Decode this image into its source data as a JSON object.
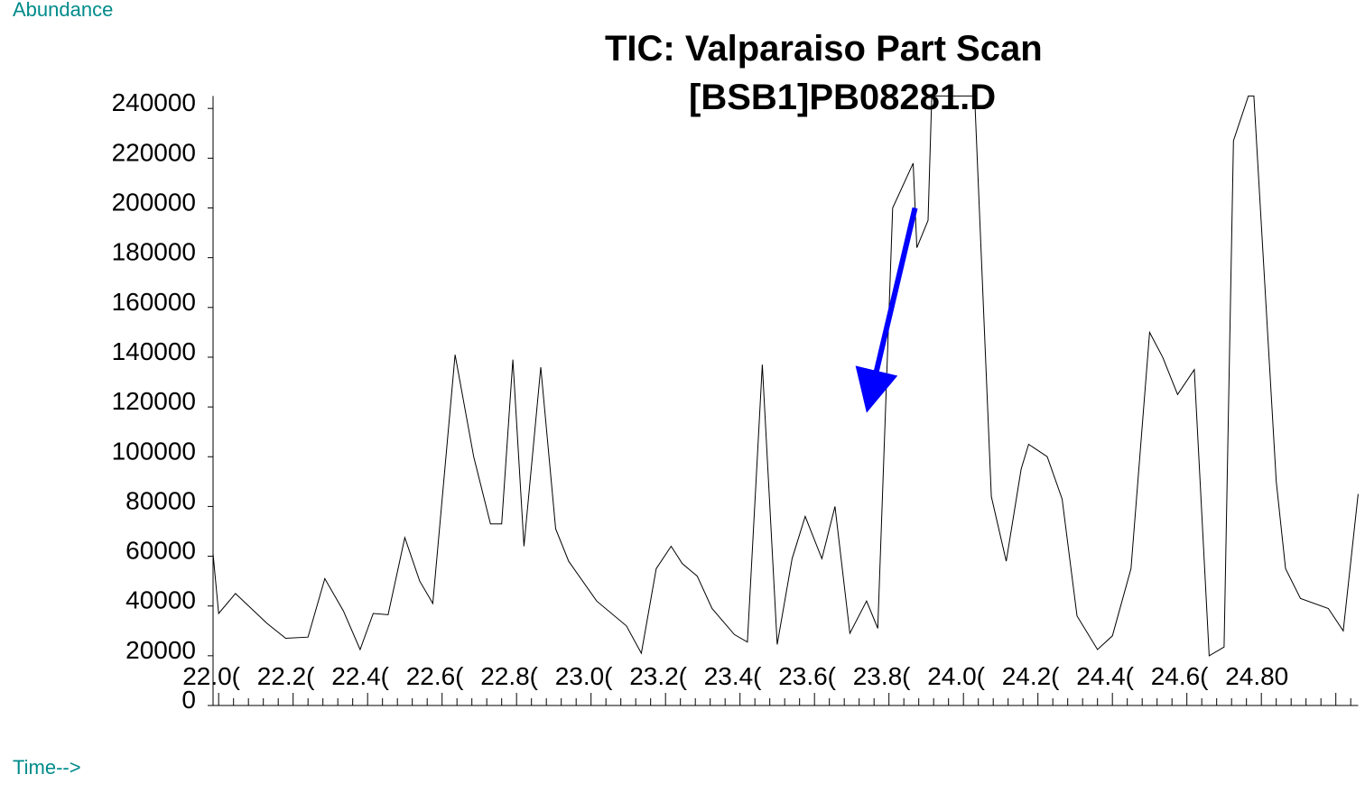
{
  "chart_data": {
    "type": "line",
    "orientation": "flipped-vertically",
    "title": "TIC: Valparaiso Part Scan",
    "subtitle": "[BSB1]PB08281.D",
    "xlabel": "Time-->",
    "ylabel": "Abundance",
    "x_tick_labels": [
      "22.0(",
      "22.2(",
      "22.4(",
      "22.6(",
      "22.8(",
      "23.0(",
      "23.2(",
      "23.4(",
      "23.6(",
      "23.8(",
      "24.0(",
      "24.2(",
      "24.4(",
      "24.6(",
      "24.80"
    ],
    "x_ticks": [
      22.0,
      22.2,
      22.4,
      22.6,
      22.8,
      23.0,
      23.2,
      23.4,
      23.6,
      23.8,
      24.0,
      24.2,
      24.4,
      24.6,
      24.8
    ],
    "y_tick_labels": [
      "0",
      "20000",
      "40000",
      "60000",
      "80000",
      "100000",
      "120000",
      "140000",
      "160000",
      "180000",
      "200000",
      "220000",
      "240000"
    ],
    "y_ticks": [
      0,
      20000,
      40000,
      60000,
      80000,
      100000,
      120000,
      140000,
      160000,
      180000,
      200000,
      220000,
      240000
    ],
    "xlim": [
      21.985,
      25.06
    ],
    "ylim": [
      0,
      245000
    ],
    "series": [
      {
        "color": "#000000",
        "x": [
          21.985,
          22.0,
          22.045,
          22.13,
          22.18,
          22.24,
          22.285,
          22.335,
          22.38,
          22.415,
          22.455,
          22.5,
          22.54,
          22.575,
          22.635,
          22.685,
          22.73,
          22.76,
          22.79,
          22.82,
          22.865,
          22.905,
          22.94,
          23.015,
          23.095,
          23.135,
          23.175,
          23.215,
          23.245,
          23.285,
          23.325,
          23.385,
          23.42,
          23.46,
          23.5,
          23.54,
          23.575,
          23.62,
          23.655,
          23.695,
          23.74,
          23.77,
          23.81,
          23.865,
          23.875,
          23.905,
          23.915,
          23.955,
          23.99,
          24.03,
          24.075,
          24.115,
          24.155,
          24.175,
          24.225,
          24.265,
          24.305,
          24.36,
          24.4,
          24.45,
          24.5,
          24.535,
          24.575,
          24.62,
          24.66,
          24.7,
          24.725,
          24.765,
          24.78,
          24.84,
          24.865,
          24.905,
          24.98,
          25.02,
          25.06
        ],
        "y": [
          61000,
          37000,
          45000,
          33000,
          27000,
          27500,
          51000,
          38000,
          22500,
          37000,
          36500,
          67500,
          50000,
          41000,
          141000,
          100000,
          73000,
          73000,
          139000,
          64000,
          136000,
          71000,
          58000,
          42000,
          32000,
          21000,
          55000,
          64000,
          57000,
          52000,
          39000,
          28500,
          25500,
          137000,
          24500,
          59000,
          76000,
          59000,
          80000,
          29000,
          42000,
          31000,
          200000,
          218000,
          184000,
          195000,
          245000,
          245000,
          245000,
          245000,
          84000,
          58000,
          95000,
          105000,
          100000,
          83000,
          36000,
          22500,
          28000,
          55000,
          150000,
          140000,
          125000,
          135000,
          20000,
          23500,
          227000,
          245000,
          245000,
          90000,
          55000,
          43000,
          39000,
          30000,
          85000
        ]
      }
    ],
    "annotation_arrow": {
      "color": "#0000ff",
      "from": [
        23.87,
        200000
      ],
      "to": [
        23.75,
        124000
      ]
    },
    "grid": false,
    "legend": "none"
  }
}
